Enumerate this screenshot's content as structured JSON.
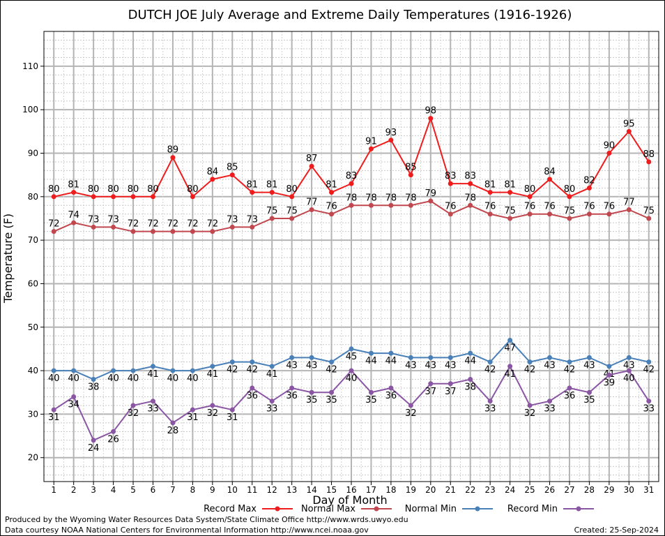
{
  "chart_data": {
    "type": "line",
    "title": "DUTCH JOE July Average and Extreme Daily Temperatures (1916-1926)",
    "xlabel": "Day of Month",
    "ylabel": "Temperature (F)",
    "xlim": [
      0.5,
      31.5
    ],
    "ylim": [
      14.5,
      118
    ],
    "y_ticks": [
      20,
      30,
      40,
      50,
      60,
      70,
      80,
      90,
      100,
      110
    ],
    "x": [
      1,
      2,
      3,
      4,
      5,
      6,
      7,
      8,
      9,
      10,
      11,
      12,
      13,
      14,
      15,
      16,
      17,
      18,
      19,
      20,
      21,
      22,
      23,
      24,
      25,
      26,
      27,
      28,
      29,
      30,
      31
    ],
    "grid": true,
    "legend_position": "bottom",
    "series": [
      {
        "name": "Record Max",
        "color": "#ee1c1c",
        "label_pos": "above",
        "values": [
          80,
          81,
          80,
          80,
          80,
          80,
          89,
          80,
          84,
          85,
          81,
          81,
          80,
          87,
          81,
          83,
          91,
          93,
          85,
          98,
          83,
          83,
          81,
          81,
          80,
          84,
          80,
          82,
          90,
          95,
          88
        ]
      },
      {
        "name": "Normal Max",
        "color": "#c0484e",
        "label_pos": "above",
        "values": [
          72,
          74,
          73,
          73,
          72,
          72,
          72,
          72,
          72,
          73,
          73,
          75,
          75,
          77,
          76,
          78,
          78,
          78,
          78,
          79,
          76,
          78,
          76,
          75,
          76,
          76,
          75,
          76,
          76,
          77,
          75
        ]
      },
      {
        "name": "Normal Min",
        "color": "#4a80b8",
        "label_pos": "below",
        "values": [
          40,
          40,
          38,
          40,
          40,
          41,
          40,
          40,
          41,
          42,
          42,
          41,
          43,
          43,
          42,
          45,
          44,
          44,
          43,
          43,
          43,
          44,
          42,
          47,
          42,
          43,
          42,
          43,
          41,
          43,
          42
        ]
      },
      {
        "name": "Record Min",
        "color": "#8a56a4",
        "label_pos": "below",
        "values": [
          31,
          34,
          24,
          26,
          32,
          33,
          28,
          31,
          32,
          31,
          36,
          33,
          36,
          35,
          35,
          40,
          35,
          36,
          32,
          37,
          37,
          38,
          33,
          41,
          32,
          33,
          36,
          35,
          39,
          40,
          33
        ]
      }
    ]
  },
  "footer": {
    "produced_by": "Produced by the Wyoming Water Resources Data System/State Climate Office http://www.wrds.uwyo.edu",
    "courtesy": "Data courtesy NOAA National Centers for Environmental Information http://www.ncei.noaa.gov",
    "created": "Created:  25-Sep-2024"
  }
}
